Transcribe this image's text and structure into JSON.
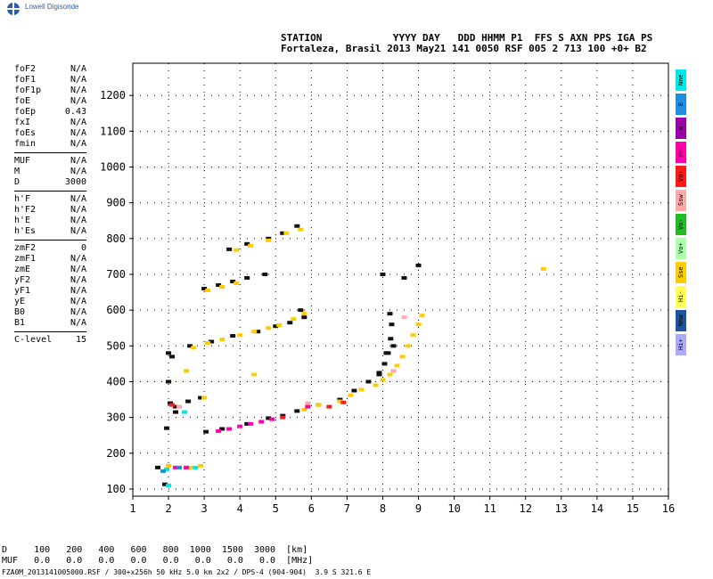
{
  "brand": {
    "logo_text": "Lowell Digisonde"
  },
  "header": {
    "line1": "STATION            YYYY DAY   DDD HHMM P1  FFS S AXN PPS IGA PS",
    "line2": "Fortaleza, Brasil 2013 May21 141 0050 RSF 005 2 713 100 +0+ B2"
  },
  "params": {
    "group1": [
      {
        "label": "foF2",
        "value": "N/A"
      },
      {
        "label": "foF1",
        "value": "N/A"
      },
      {
        "label": "foF1p",
        "value": "N/A"
      },
      {
        "label": "foE",
        "value": "N/A"
      },
      {
        "label": "foEp",
        "value": "0.43"
      },
      {
        "label": "fxI",
        "value": "N/A"
      },
      {
        "label": "foEs",
        "value": "N/A"
      },
      {
        "label": "fmin",
        "value": "N/A"
      }
    ],
    "group2": [
      {
        "label": "MUF",
        "value": "N/A"
      },
      {
        "label": "M",
        "value": "N/A"
      },
      {
        "label": "D",
        "value": "3000"
      }
    ],
    "group3": [
      {
        "label": "h'F",
        "value": "N/A"
      },
      {
        "label": "h'F2",
        "value": "N/A"
      },
      {
        "label": "h'E",
        "value": "N/A"
      },
      {
        "label": "h'Es",
        "value": "N/A"
      }
    ],
    "group4": [
      {
        "label": "zmF2",
        "value": "0"
      },
      {
        "label": "zmF1",
        "value": "N/A"
      },
      {
        "label": "zmE",
        "value": "N/A"
      },
      {
        "label": "yF2",
        "value": "N/A"
      },
      {
        "label": "yF1",
        "value": "N/A"
      },
      {
        "label": "yE",
        "value": "N/A"
      },
      {
        "label": "B0",
        "value": "N/A"
      },
      {
        "label": "B1",
        "value": "N/A"
      }
    ],
    "group5": [
      {
        "label": "C-level",
        "value": "15"
      }
    ]
  },
  "legend": [
    {
      "label": "Nne",
      "color": "#00e8e8"
    },
    {
      "label": "E",
      "color": "#1f8ee0"
    },
    {
      "label": "W",
      "color": "#9900aa"
    },
    {
      "label": "Vo-",
      "color": "#ff00aa"
    },
    {
      "label": "Vo+",
      "color": "#ff1a1a"
    },
    {
      "label": "Ssw",
      "color": "#ffaaaa"
    },
    {
      "label": "Vo-",
      "color": "#22bb22"
    },
    {
      "label": "Vo+",
      "color": "#aaffaa"
    },
    {
      "label": "Sse",
      "color": "#ffcc00"
    },
    {
      "label": "Hi-",
      "color": "#ffff55"
    },
    {
      "label": "Nnw",
      "color": "#1f55a0"
    },
    {
      "label": "Hi+",
      "color": "#aaaaff"
    }
  ],
  "footer": {
    "d_row": "D     100   200   400   600   800  1000  1500  3000  [km]",
    "muf_row": "MUF   0.0   0.0   0.0   0.0   0.0   0.0   0.0   0.0  [MHz]",
    "file_line": "FZA0M_2013141005000.RSF / 300+x256h 50 kHz 5.0 km 2x2 / DPS-4 (904-904)  3.9 S 321.6 E"
  },
  "chart_data": {
    "type": "scatter",
    "xlim": [
      1,
      16
    ],
    "ylim": [
      80,
      1290
    ],
    "x_ticks": [
      1,
      2,
      3,
      4,
      5,
      6,
      7,
      8,
      9,
      10,
      11,
      12,
      13,
      14,
      15,
      16
    ],
    "y_ticks": [
      100,
      200,
      300,
      400,
      500,
      600,
      700,
      800,
      900,
      1000,
      1100,
      1200
    ],
    "grid": true,
    "series": [
      {
        "color": "#111111",
        "points": [
          [
            1.7,
            160
          ],
          [
            1.9,
            113
          ],
          [
            2.05,
            340
          ],
          [
            2.2,
            330
          ],
          [
            2.55,
            345
          ],
          [
            2.9,
            355
          ],
          [
            3.05,
            260
          ],
          [
            3.5,
            268
          ],
          [
            4.2,
            282
          ],
          [
            4.8,
            298
          ],
          [
            5.2,
            305
          ],
          [
            5.6,
            318
          ],
          [
            6.2,
            335
          ],
          [
            6.8,
            350
          ],
          [
            7.2,
            375
          ],
          [
            7.6,
            400
          ],
          [
            7.9,
            425
          ],
          [
            8.05,
            450
          ],
          [
            8.15,
            480
          ],
          [
            8.22,
            520
          ],
          [
            8.25,
            560
          ],
          [
            8.2,
            590
          ],
          [
            7.9,
            420
          ],
          [
            8.1,
            480
          ],
          [
            8.3,
            500
          ],
          [
            2.6,
            500
          ],
          [
            3.2,
            512
          ],
          [
            3.8,
            528
          ],
          [
            4.5,
            540
          ],
          [
            5.0,
            555
          ],
          [
            5.4,
            565
          ],
          [
            5.8,
            580
          ],
          [
            5.7,
            600
          ],
          [
            2.0,
            480
          ],
          [
            2.1,
            470
          ],
          [
            3.7,
            770
          ],
          [
            4.2,
            785
          ],
          [
            4.8,
            800
          ],
          [
            5.2,
            815
          ],
          [
            5.6,
            835
          ],
          [
            3.0,
            660
          ],
          [
            3.4,
            670
          ],
          [
            3.8,
            680
          ],
          [
            4.2,
            690
          ],
          [
            4.7,
            700
          ],
          [
            8.0,
            700
          ],
          [
            9.0,
            725
          ],
          [
            2.0,
            400
          ],
          [
            1.95,
            270
          ],
          [
            2.2,
            315
          ],
          [
            8.6,
            690
          ]
        ]
      },
      {
        "color": "#ffcc00",
        "points": [
          [
            2.7,
            495
          ],
          [
            3.1,
            508
          ],
          [
            3.5,
            518
          ],
          [
            4.0,
            530
          ],
          [
            4.4,
            540
          ],
          [
            4.8,
            550
          ],
          [
            5.1,
            558
          ],
          [
            5.5,
            575
          ],
          [
            5.8,
            590
          ],
          [
            3.9,
            768
          ],
          [
            4.3,
            780
          ],
          [
            4.8,
            795
          ],
          [
            5.3,
            815
          ],
          [
            5.7,
            825
          ],
          [
            3.1,
            655
          ],
          [
            3.5,
            665
          ],
          [
            3.9,
            675
          ],
          [
            7.8,
            390
          ],
          [
            8.0,
            405
          ],
          [
            8.2,
            420
          ],
          [
            8.4,
            445
          ],
          [
            8.55,
            470
          ],
          [
            8.7,
            500
          ],
          [
            8.85,
            530
          ],
          [
            9.0,
            560
          ],
          [
            9.1,
            585
          ],
          [
            6.8,
            345
          ],
          [
            7.1,
            362
          ],
          [
            7.4,
            378
          ],
          [
            3.0,
            355
          ],
          [
            2.5,
            430
          ],
          [
            4.4,
            420
          ],
          [
            12.5,
            715
          ],
          [
            2.0,
            165
          ],
          [
            2.6,
            160
          ],
          [
            2.9,
            165
          ],
          [
            6.2,
            335
          ],
          [
            5.8,
            322
          ]
        ]
      },
      {
        "color": "#ff00aa",
        "points": [
          [
            3.4,
            262
          ],
          [
            3.7,
            268
          ],
          [
            4.0,
            275
          ],
          [
            4.3,
            282
          ],
          [
            4.6,
            288
          ],
          [
            4.9,
            295
          ],
          [
            2.2,
            160
          ],
          [
            2.5,
            160
          ],
          [
            5.9,
            330
          ]
        ]
      },
      {
        "color": "#ff1a1a",
        "points": [
          [
            6.5,
            330
          ],
          [
            6.9,
            342
          ],
          [
            5.2,
            300
          ],
          [
            2.1,
            335
          ]
        ]
      },
      {
        "color": "#00e8e8",
        "points": [
          [
            2.45,
            315
          ],
          [
            1.95,
            155
          ],
          [
            2.75,
            160
          ],
          [
            2.0,
            110
          ]
        ]
      },
      {
        "color": "#1f8ee0",
        "points": [
          [
            2.3,
            160
          ],
          [
            1.85,
            150
          ]
        ]
      },
      {
        "color": "#ffaaaa",
        "points": [
          [
            5.9,
            340
          ],
          [
            8.3,
            430
          ],
          [
            8.6,
            580
          ],
          [
            2.3,
            330
          ]
        ]
      }
    ]
  }
}
